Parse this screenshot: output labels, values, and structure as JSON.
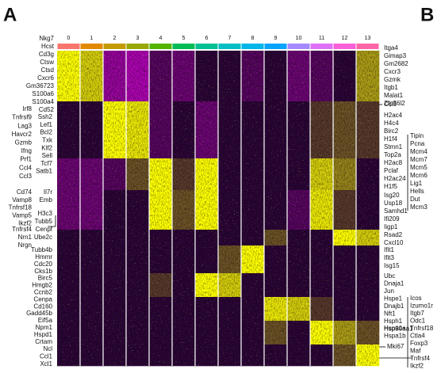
{
  "panel_labels": [
    "A",
    "B"
  ],
  "chart_data": {
    "type": "heatmap",
    "columns": [
      "0",
      "1",
      "2",
      "3",
      "4",
      "5",
      "6",
      "7",
      "8",
      "9",
      "10",
      "11",
      "12",
      "13"
    ],
    "column_colors": [
      "#f8766d",
      "#e38900",
      "#c49a00",
      "#99a800",
      "#53b400",
      "#00bc56",
      "#00c094",
      "#00bfc4",
      "#00b6eb",
      "#06a4ff",
      "#a58aff",
      "#df70f8",
      "#fb61d7",
      "#ff66a8"
    ],
    "color_scale": [
      "#ff00ff",
      "#2a0536",
      "#ffff00"
    ],
    "values": [
      [
        1,
        0.8,
        -0.5,
        -0.6,
        -0.2,
        -0.3,
        0,
        0,
        -0.2,
        0,
        -0.3,
        -0.2,
        0,
        0.6
      ],
      [
        0,
        0,
        1,
        0.9,
        -0.2,
        0,
        -0.3,
        0,
        0,
        0,
        0,
        0.2,
        0.3,
        0.2
      ],
      [
        -0.3,
        -0.3,
        -0.2,
        0.3,
        1,
        0.2,
        1,
        0,
        0,
        0,
        0,
        0.8,
        0.5,
        0
      ],
      [
        -0.3,
        -0.3,
        0,
        0,
        1,
        0.3,
        1,
        0,
        0,
        0,
        -0.2,
        0.9,
        0.2,
        0
      ],
      [
        0,
        0,
        0,
        0,
        0,
        0,
        0,
        0,
        0,
        0.3,
        0,
        0,
        1,
        0.8
      ],
      [
        0,
        0,
        0,
        0,
        0,
        0,
        0,
        0.3,
        1,
        0,
        0,
        0,
        0,
        0
      ],
      [
        0,
        0,
        0,
        0,
        0.2,
        0,
        1,
        0.8,
        0,
        0,
        0,
        0,
        0,
        0
      ],
      [
        0,
        0,
        0,
        0,
        0,
        0,
        0,
        0,
        0,
        0.9,
        0.8,
        0.2,
        0,
        0
      ],
      [
        0,
        0,
        0,
        0,
        0,
        0,
        0,
        0,
        0,
        0.3,
        0,
        1,
        0.6,
        0.3
      ],
      [
        0,
        0,
        0,
        0,
        0,
        0,
        0,
        0,
        0,
        0,
        0,
        0,
        0.3,
        1
      ]
    ],
    "left_labels": [
      [
        "Nkg7",
        "Hcst",
        "Cd3g",
        "Ctsw",
        "Ctsd",
        "Cxcr6",
        "Gm36723",
        "S100a6",
        "S100a4",
        "Cd52"
      ],
      [
        "Irf8",
        "Tnfrsf9",
        "Lag3",
        "Havcr2",
        "Gzmb",
        "Ifng",
        "Prf1",
        "Ccl4",
        "Ccl3"
      ],
      [
        "Ssh2",
        "Lef1",
        "Bcl2",
        "Txk",
        "Klf2",
        "Sell",
        "Tcf7",
        "Satb1"
      ],
      [
        "Il7r",
        "Emb"
      ],
      [
        "Cd74",
        "Vamp8",
        "Tnfrsf18",
        "Vamp5",
        "Ikzf2"
      ],
      [
        "H3c3",
        "Tubb5",
        "Cenpf",
        "Ube2c"
      ],
      [
        "Tnfrsf4",
        "Nrn1",
        "Nrgn"
      ],
      [
        "Tubb4b",
        "Hmmr",
        "Cdc20",
        "Cks1b",
        "Birc5",
        "Hmgb2",
        "Ccnb2",
        "Cenpa",
        "Cd160",
        "Gadd45b",
        "Eif5a",
        "Npm1",
        "Hspd1",
        "Crtam"
      ],
      [
        "Ncl",
        "Ccl1",
        "Xcl1"
      ]
    ],
    "right_labels": [
      [
        "Itga4",
        "Gimap3",
        "Gm2682",
        "Cxcr3",
        "Gzmk",
        "Itgb1",
        "Malat1",
        "Zfp36l2"
      ],
      [
        "Ccl5"
      ],
      [
        "H2ac4",
        "H4c4",
        "Birc2",
        "H1f4",
        "Stmn1",
        "Top2a",
        "H2ac8",
        "Pclaf",
        "H2ac24",
        "H1f5"
      ],
      [
        "Isg20",
        "Usp18",
        "Samhd1",
        "Ifi209"
      ],
      [
        "Iigp1",
        "Rsad2",
        "Cxcl10"
      ],
      [
        "Ifit1",
        "Ifit3",
        "Isg15"
      ],
      [
        "Ubc",
        "Dnaja1",
        "Jun",
        "Hspe1",
        "Dnajb1",
        "Nft1",
        "Hsph1",
        "Hsp90aa1"
      ],
      [
        "Hspa1a",
        "Hspa1b"
      ],
      [
        "Mki67"
      ],
      [
        "Tipin",
        "Pcna",
        "Mcm4",
        "Mcm7",
        "Mcm5",
        "Mcm6",
        "Lig1",
        "Hells",
        "Dut",
        "Mcm3"
      ],
      [
        "Icos",
        "Izumo1r",
        "Itgb7",
        "Odc1",
        "Tnfrsf18",
        "Ctla4",
        "Foxp3",
        "Maf",
        "Tnfrsf4",
        "Ikzf2"
      ]
    ]
  }
}
